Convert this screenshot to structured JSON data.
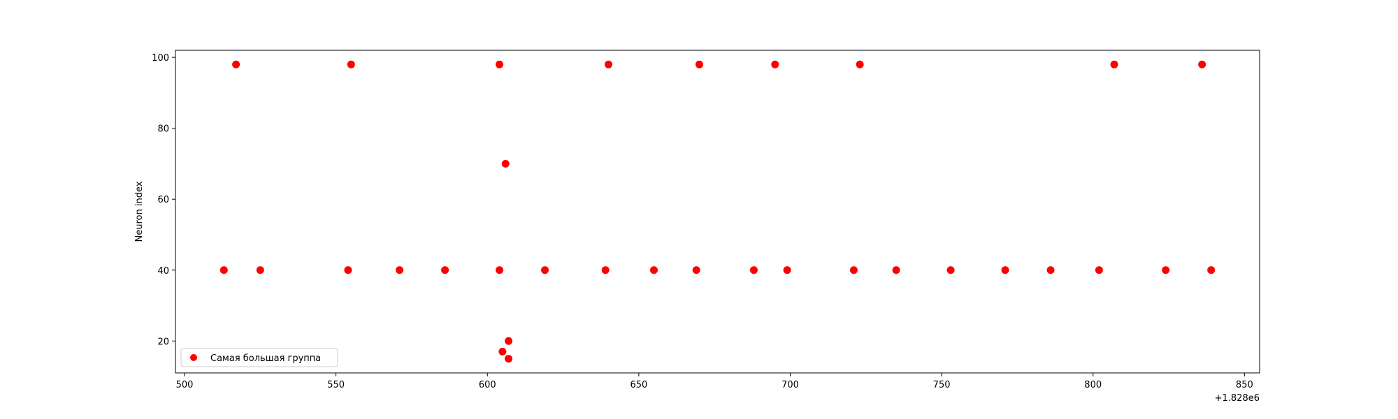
{
  "chart_data": {
    "type": "scatter",
    "title": "",
    "xlabel": "",
    "ylabel": "Neuron index",
    "x_offset_label": "+1.828e6",
    "xlim": [
      497,
      855
    ],
    "ylim": [
      11,
      102
    ],
    "xticks": [
      500,
      550,
      600,
      650,
      700,
      750,
      800,
      850
    ],
    "yticks": [
      20,
      40,
      60,
      80,
      100
    ],
    "grid": false,
    "legend_position": "lower-left",
    "series": [
      {
        "name": "Самая большая группа",
        "color": "#ff0000",
        "points": [
          {
            "x": 517,
            "y": 98
          },
          {
            "x": 555,
            "y": 98
          },
          {
            "x": 604,
            "y": 98
          },
          {
            "x": 640,
            "y": 98
          },
          {
            "x": 670,
            "y": 98
          },
          {
            "x": 695,
            "y": 98
          },
          {
            "x": 723,
            "y": 98
          },
          {
            "x": 807,
            "y": 98
          },
          {
            "x": 836,
            "y": 98
          },
          {
            "x": 606,
            "y": 70
          },
          {
            "x": 513,
            "y": 40
          },
          {
            "x": 525,
            "y": 40
          },
          {
            "x": 554,
            "y": 40
          },
          {
            "x": 571,
            "y": 40
          },
          {
            "x": 586,
            "y": 40
          },
          {
            "x": 604,
            "y": 40
          },
          {
            "x": 619,
            "y": 40
          },
          {
            "x": 639,
            "y": 40
          },
          {
            "x": 655,
            "y": 40
          },
          {
            "x": 669,
            "y": 40
          },
          {
            "x": 688,
            "y": 40
          },
          {
            "x": 699,
            "y": 40
          },
          {
            "x": 721,
            "y": 40
          },
          {
            "x": 735,
            "y": 40
          },
          {
            "x": 753,
            "y": 40
          },
          {
            "x": 771,
            "y": 40
          },
          {
            "x": 786,
            "y": 40
          },
          {
            "x": 802,
            "y": 40
          },
          {
            "x": 824,
            "y": 40
          },
          {
            "x": 839,
            "y": 40
          },
          {
            "x": 607,
            "y": 20
          },
          {
            "x": 605,
            "y": 17
          },
          {
            "x": 607,
            "y": 15
          }
        ]
      }
    ]
  }
}
